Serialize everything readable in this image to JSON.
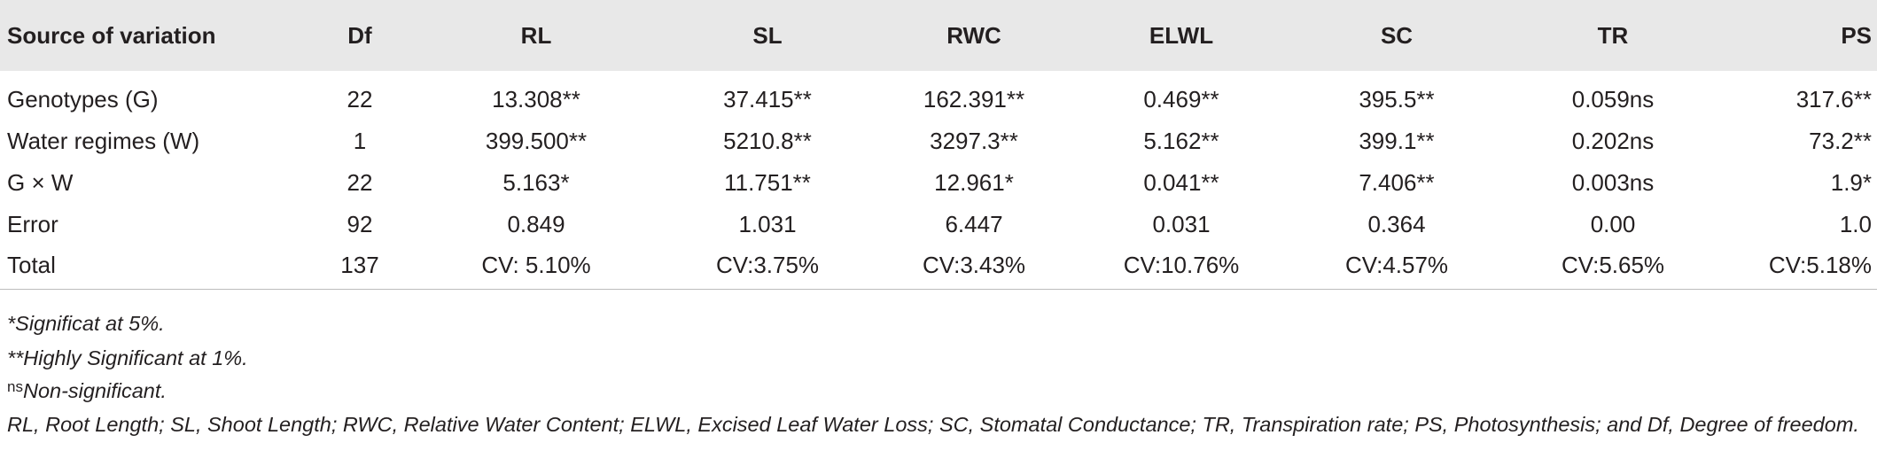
{
  "table": {
    "header": [
      "Source of variation",
      "Df",
      "RL",
      "SL",
      "RWC",
      "ELWL",
      "SC",
      "TR",
      "PS"
    ],
    "rows": [
      [
        "Genotypes (G)",
        "22",
        "13.308**",
        "37.415**",
        "162.391**",
        "0.469**",
        "395.5**",
        "0.059ns",
        "317.6**"
      ],
      [
        "Water regimes (W)",
        "1",
        "399.500**",
        "5210.8**",
        "3297.3**",
        "5.162**",
        "399.1**",
        "0.202ns",
        "73.2**"
      ],
      [
        "G × W",
        "22",
        "5.163*",
        "11.751**",
        "12.961*",
        "0.041**",
        "7.406**",
        "0.003ns",
        "1.9*"
      ],
      [
        "Error",
        "92",
        "0.849",
        "1.031",
        "6.447",
        "0.031",
        "0.364",
        "0.00",
        "1.0"
      ],
      [
        "Total",
        "137",
        "CV: 5.10%",
        "CV:3.75%",
        "CV:3.43%",
        "CV:10.76%",
        "CV:4.57%",
        "CV:5.65%",
        "CV:5.18%"
      ]
    ]
  },
  "footnotes": [
    {
      "text": "*Significat at 5%."
    },
    {
      "text": "**Highly Significant at 1%."
    },
    {
      "sup": "ns",
      "text": "Non-significant."
    },
    {
      "text": "RL, Root Length; SL, Shoot Length; RWC, Relative Water Content; ELWL, Excised Leaf Water Loss; SC, Stomatal Conductance; TR, Transpiration rate; PS, Photosynthesis; and Df, Degree of freedom."
    }
  ]
}
